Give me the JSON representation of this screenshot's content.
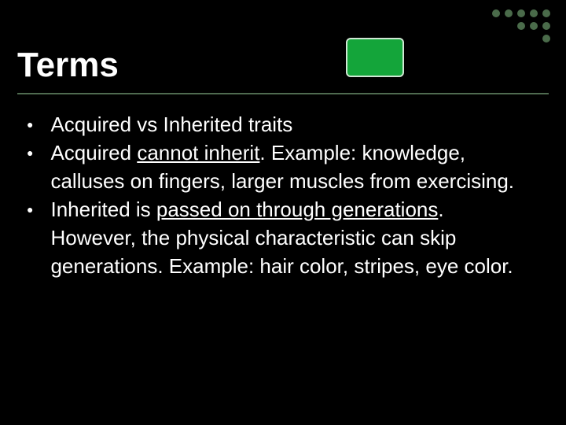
{
  "title": "Terms",
  "deco": {
    "dot_colors_rows": [
      [
        "#4a6b4a",
        "#4a6b4a",
        "#4a6b4a",
        "#4a6b4a",
        "#4a6b4a"
      ],
      [
        "#4a6b4a",
        "#4a6b4a",
        "#4a6b4a"
      ],
      [
        "#4a6b4a"
      ]
    ],
    "green_box_color": "#14a53a",
    "green_box_border": "#cfe7d3"
  },
  "bullets": [
    {
      "segments": [
        {
          "text": "Acquired vs Inherited traits",
          "underline": false
        }
      ]
    },
    {
      "segments": [
        {
          "text": "Acquired ",
          "underline": false
        },
        {
          "text": "cannot inherit",
          "underline": true
        },
        {
          "text": ". Example: knowledge, calluses on fingers, larger muscles from exercising.",
          "underline": false
        }
      ]
    },
    {
      "segments": [
        {
          "text": "Inherited is ",
          "underline": false
        },
        {
          "text": "passed on through generations",
          "underline": true
        },
        {
          "text": ". However, the physical characteristic can skip generations. Example:  hair color, stripes, eye color.",
          "underline": false
        }
      ]
    }
  ],
  "style": {
    "background": "#000000",
    "text_color": "#ffffff",
    "title_fontsize": 44,
    "body_fontsize": 26,
    "body_lineheight": 36,
    "rule_color": "#4f6b50"
  }
}
